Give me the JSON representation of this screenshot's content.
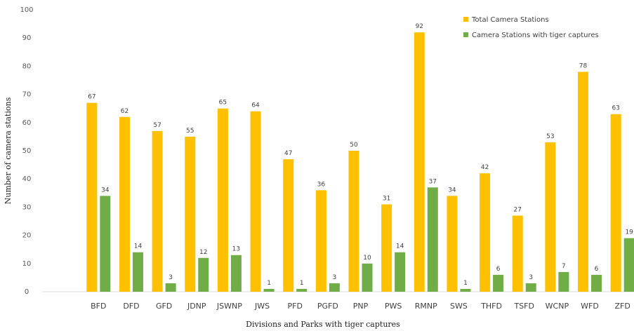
{
  "chart_data": {
    "type": "bar",
    "title": "",
    "xlabel": "Divisions and Parks with tiger captures",
    "ylabel": "Number of camera stations",
    "ylim": [
      0,
      100
    ],
    "yticks": [
      0,
      10,
      20,
      30,
      40,
      50,
      60,
      70,
      80,
      90,
      100
    ],
    "grid": false,
    "legend_position": "top-right",
    "categories": [
      "BFD",
      "DFD",
      "GFD",
      "JDNP",
      "JSWNP",
      "JWS",
      "PFD",
      "PGFD",
      "PNP",
      "PWS",
      "RMNP",
      "SWS",
      "THFD",
      "TSFD",
      "WCNP",
      "WFD",
      "ZFD"
    ],
    "series": [
      {
        "name": "Total Camera Stations",
        "color": "#FFC000",
        "values": [
          67,
          62,
          57,
          55,
          65,
          64,
          47,
          36,
          50,
          31,
          92,
          34,
          42,
          27,
          53,
          78,
          63
        ]
      },
      {
        "name": "Camera Stations with tiger captures",
        "color": "#70AD47",
        "values": [
          34,
          14,
          3,
          12,
          13,
          1,
          1,
          3,
          10,
          14,
          37,
          1,
          6,
          3,
          7,
          6,
          19
        ]
      }
    ]
  }
}
